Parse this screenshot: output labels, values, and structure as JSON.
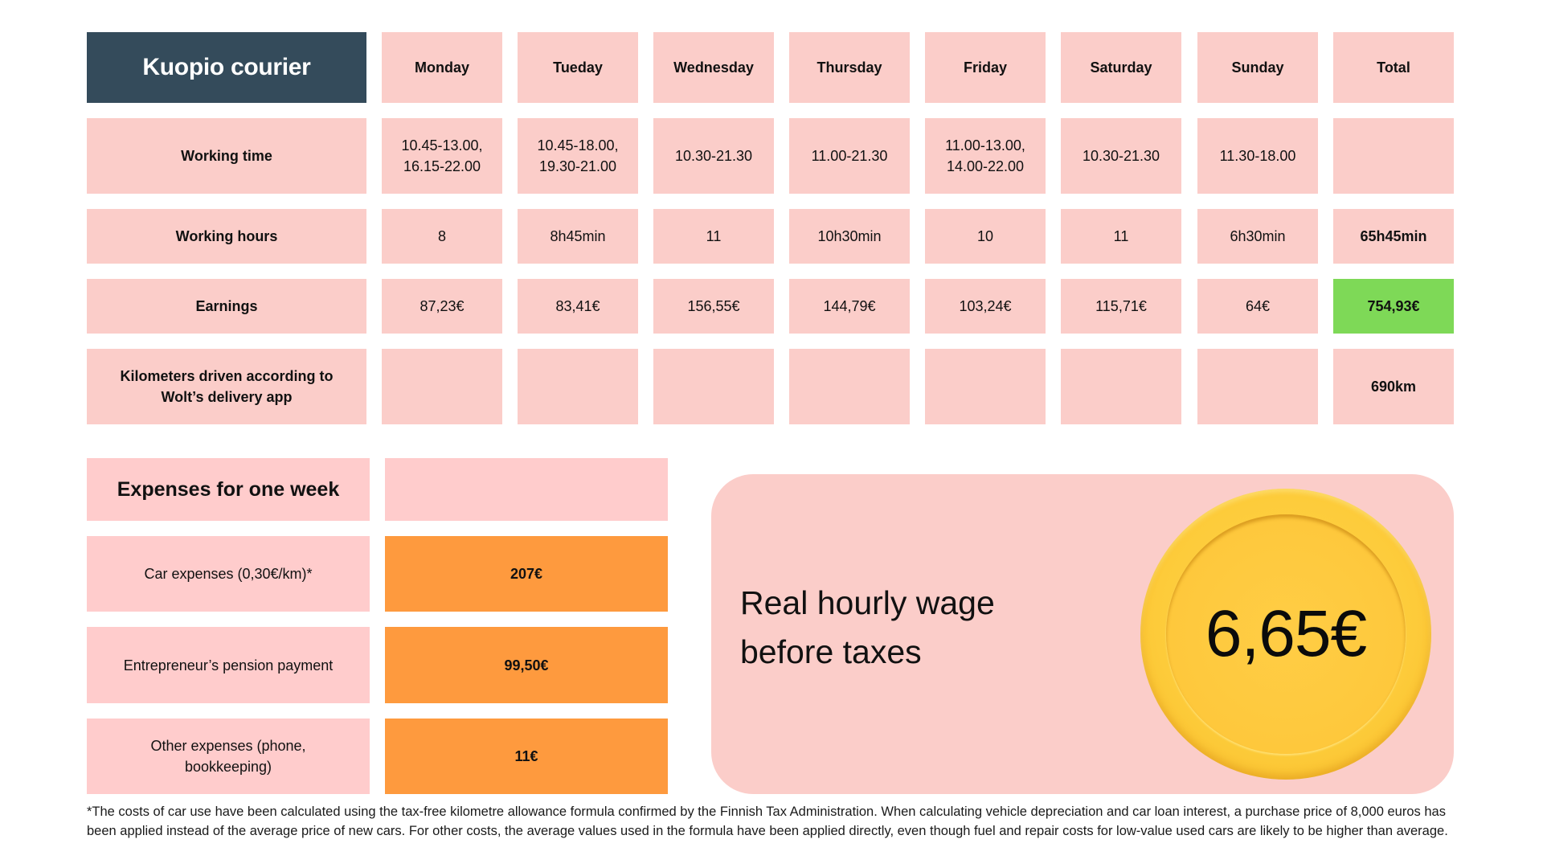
{
  "title": "Kuopio courier",
  "columns": [
    "Monday",
    "Tueday",
    "Wednesday",
    "Thursday",
    "Friday",
    "Saturday",
    "Sunday",
    "Total"
  ],
  "rows": [
    {
      "label": "Working time",
      "values": [
        "10.45-13.00,\n16.15-22.00",
        "10.45-18.00,\n19.30-21.00",
        "10.30-21.30",
        "11.00-21.30",
        "11.00-13.00,\n14.00-22.00",
        "10.30-21.30",
        "11.30-18.00",
        ""
      ]
    },
    {
      "label": "Working hours",
      "values": [
        "8",
        "8h45min",
        "11",
        "10h30min",
        "10",
        "11",
        "6h30min",
        "65h45min"
      ]
    },
    {
      "label": "Earnings",
      "values": [
        "87,23€",
        "83,41€",
        "156,55€",
        "144,79€",
        "103,24€",
        "115,71€",
        "64€",
        "754,93€"
      ]
    },
    {
      "label": "Kilometers driven according to\nWolt’s delivery app",
      "values": [
        "",
        "",
        "",
        "",
        "",
        "",
        "",
        "690km"
      ]
    }
  ],
  "expenses": {
    "title": "Expenses for one week",
    "items": [
      {
        "label": "Car expenses (0,30€/km)*",
        "value": "207€"
      },
      {
        "label": "Entrepreneur’s pension payment",
        "value": "99,50€"
      },
      {
        "label": "Other expenses (phone,\nbookkeeping)",
        "value": "11€"
      }
    ]
  },
  "wage": {
    "label": "Real hourly wage\nbefore taxes",
    "value": "6,65€"
  },
  "footnote": "*The costs of car use have been calculated using the tax-free kilometre allowance formula confirmed by the Finnish Tax Administration. When calculating vehicle depreciation and car loan interest, a purchase price of 8,000 euros has been applied instead of the average price of new cars. For other costs, the average values used in the formula have been applied directly, even though fuel and repair costs for low-value used cars are likely to be higher than average.",
  "colors": {
    "title_bg": "#344b5b",
    "cell_bg": "#fbcdc9",
    "total_earnings_bg": "#7ed957",
    "expense_value_bg": "#fe9a3e",
    "coin": "#fdcb3a"
  }
}
